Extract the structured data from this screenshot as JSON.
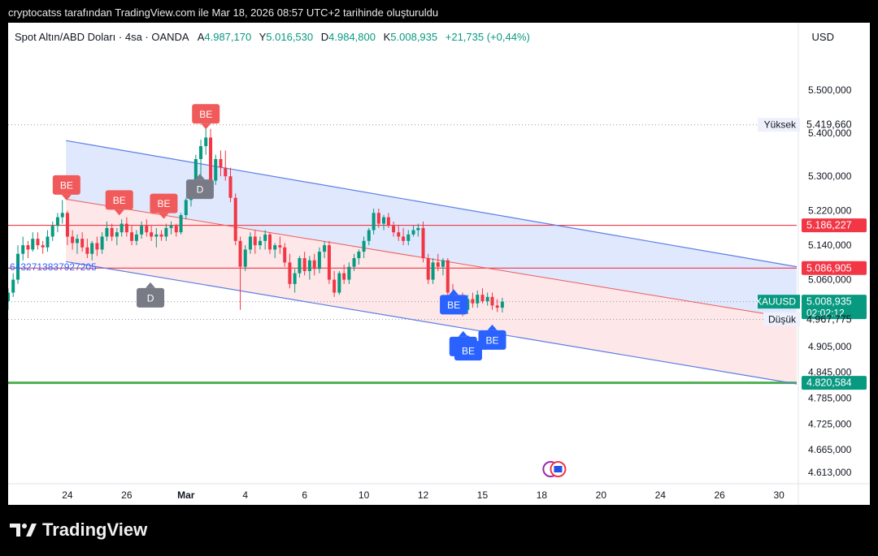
{
  "caption": "cryptocatss tarafından TradingView.com ile Mar 18, 2026 08:57 UTC+2 tarihinde oluşturuldu",
  "legend": {
    "symbol": "Spot Altın/ABD Doları · 4sa · OANDA",
    "open_label": "A",
    "open": "4.987,170",
    "high_label": "Y",
    "high": "5.016,530",
    "low_label": "D",
    "low": "4.984,800",
    "close_label": "K",
    "close": "5.008,935",
    "change": "+21,735 (+0,44%)"
  },
  "currency": "USD",
  "brand": "TradingView",
  "colors": {
    "up": "#089981",
    "down": "#f23645",
    "channel_blue": "#5b7ee5",
    "channel_fill_blue": "#dbe6fd",
    "channel_fill_red": "#fde4e6",
    "support_green": "#4caf50",
    "resistance_red": "#f23645",
    "be_label_red": "#f05a5a",
    "be_label_blue": "#2962ff",
    "d_label_gray": "#787b86"
  },
  "chart_data": {
    "type": "candlestick",
    "x_axis": {
      "ticks": [
        {
          "day": 24,
          "label": "24"
        },
        {
          "day": 26,
          "label": "26"
        },
        {
          "day": 28,
          "label": "Mar"
        },
        {
          "day": 30,
          "label": "4"
        },
        {
          "day": 32,
          "label": "6"
        },
        {
          "day": 34,
          "label": "10"
        },
        {
          "day": 36,
          "label": "12"
        },
        {
          "day": 38,
          "label": "15"
        },
        {
          "day": 40,
          "label": "18"
        },
        {
          "day": 42,
          "label": "20"
        },
        {
          "day": 44,
          "label": "24"
        },
        {
          "day": 46,
          "label": "26"
        },
        {
          "day": 48,
          "label": "30"
        }
      ],
      "range": [
        22.0,
        48.6
      ]
    },
    "y_axis": {
      "range": [
        4590,
        5600
      ],
      "ticks": [
        {
          "value": 5500,
          "label": "5.500,000"
        },
        {
          "value": 5400,
          "label": "5.400,000"
        },
        {
          "value": 5300,
          "label": "5.300,000"
        },
        {
          "value": 5220,
          "label": "5.220,000"
        },
        {
          "value": 5140,
          "label": "5.140,000"
        },
        {
          "value": 5060,
          "label": "5.060,000"
        },
        {
          "value": 4905,
          "label": "4.905,000"
        },
        {
          "value": 4845,
          "label": "4.845,000"
        },
        {
          "value": 4785,
          "label": "4.785,000"
        },
        {
          "value": 4725,
          "label": "4.725,000"
        },
        {
          "value": 4665,
          "label": "4.665,000"
        },
        {
          "value": 4613,
          "label": "4.613,000"
        }
      ]
    },
    "price_labels": [
      {
        "value": 5419.66,
        "text": "5.419,660",
        "tag": "Yüksek",
        "style": "plain"
      },
      {
        "value": 5186.227,
        "text": "5.186,227",
        "style": "red"
      },
      {
        "value": 5086.905,
        "text": "5.086,905",
        "style": "red"
      },
      {
        "value": 5008.935,
        "text": "5.008,935",
        "sub": "02:02:12",
        "tag": "XAUUSD",
        "style": "green"
      },
      {
        "value": 4967.775,
        "text": "4.967,775",
        "tag": "Düşük",
        "style": "plain"
      },
      {
        "value": 4820.584,
        "text": "4.820,584",
        "style": "green"
      }
    ],
    "horizontal_lines": [
      {
        "value": 5186.227,
        "color": "#f23645"
      },
      {
        "value": 5086.905,
        "color": "#f23645"
      },
      {
        "value": 4820.584,
        "color": "#4caf50",
        "thick": true
      }
    ],
    "dotted_lines": [
      5419.66,
      5008.935,
      4967.775
    ],
    "channel": {
      "upper": [
        [
          23.95,
          5383
        ],
        [
          48.6,
          5090
        ]
      ],
      "middle": [
        [
          23.95,
          5247
        ],
        [
          48.6,
          4969
        ]
      ],
      "lower": [
        [
          23.95,
          5102
        ],
        [
          48.6,
          4818
        ]
      ]
    },
    "series": [
      [
        22.0,
        5010,
        5040,
        4990,
        5030
      ],
      [
        22.17,
        5030,
        5075,
        5020,
        5060
      ],
      [
        22.33,
        5060,
        5140,
        5050,
        5120
      ],
      [
        22.5,
        5120,
        5160,
        5105,
        5140
      ],
      [
        22.67,
        5140,
        5150,
        5110,
        5130
      ],
      [
        22.83,
        5130,
        5170,
        5125,
        5155
      ],
      [
        23.0,
        5155,
        5170,
        5130,
        5140
      ],
      [
        23.17,
        5140,
        5150,
        5120,
        5135
      ],
      [
        23.33,
        5135,
        5175,
        5125,
        5160
      ],
      [
        23.5,
        5160,
        5195,
        5150,
        5185
      ],
      [
        23.67,
        5185,
        5215,
        5170,
        5205
      ],
      [
        23.83,
        5205,
        5245,
        5190,
        5215
      ],
      [
        24.0,
        5215,
        5220,
        5140,
        5160
      ],
      [
        24.17,
        5160,
        5175,
        5130,
        5145
      ],
      [
        24.33,
        5145,
        5165,
        5120,
        5155
      ],
      [
        24.5,
        5155,
        5170,
        5125,
        5135
      ],
      [
        24.67,
        5135,
        5155,
        5110,
        5120
      ],
      [
        24.83,
        5120,
        5150,
        5105,
        5145
      ],
      [
        25.0,
        5145,
        5160,
        5115,
        5130
      ],
      [
        25.17,
        5130,
        5170,
        5120,
        5160
      ],
      [
        25.33,
        5160,
        5195,
        5150,
        5180
      ],
      [
        25.5,
        5180,
        5190,
        5150,
        5160
      ],
      [
        25.67,
        5160,
        5180,
        5140,
        5170
      ],
      [
        25.83,
        5170,
        5200,
        5160,
        5190
      ],
      [
        26.0,
        5190,
        5205,
        5160,
        5170
      ],
      [
        26.17,
        5170,
        5185,
        5140,
        5150
      ],
      [
        26.33,
        5150,
        5175,
        5140,
        5165
      ],
      [
        26.5,
        5165,
        5195,
        5155,
        5185
      ],
      [
        26.67,
        5185,
        5200,
        5160,
        5170
      ],
      [
        26.83,
        5170,
        5185,
        5150,
        5160
      ],
      [
        27.0,
        5160,
        5180,
        5135,
        5165
      ],
      [
        27.17,
        5165,
        5175,
        5150,
        5160
      ],
      [
        27.33,
        5160,
        5190,
        5150,
        5180
      ],
      [
        27.5,
        5180,
        5195,
        5165,
        5185
      ],
      [
        27.67,
        5185,
        5190,
        5160,
        5170
      ],
      [
        27.83,
        5170,
        5215,
        5165,
        5210
      ],
      [
        28.0,
        5210,
        5250,
        5200,
        5245
      ],
      [
        28.17,
        5245,
        5290,
        5230,
        5280
      ],
      [
        28.33,
        5280,
        5350,
        5270,
        5340
      ],
      [
        28.5,
        5340,
        5385,
        5300,
        5370
      ],
      [
        28.67,
        5370,
        5420,
        5350,
        5390
      ],
      [
        28.83,
        5390,
        5410,
        5260,
        5290
      ],
      [
        29.0,
        5290,
        5350,
        5280,
        5340
      ],
      [
        29.17,
        5340,
        5360,
        5300,
        5320
      ],
      [
        29.33,
        5320,
        5360,
        5290,
        5300
      ],
      [
        29.5,
        5300,
        5320,
        5240,
        5250
      ],
      [
        29.67,
        5250,
        5260,
        5140,
        5150
      ],
      [
        29.83,
        5150,
        5160,
        4990,
        5090
      ],
      [
        30.0,
        5090,
        5140,
        5080,
        5130
      ],
      [
        30.17,
        5130,
        5170,
        5120,
        5160
      ],
      [
        30.33,
        5160,
        5175,
        5120,
        5140
      ],
      [
        30.5,
        5140,
        5160,
        5130,
        5150
      ],
      [
        30.67,
        5150,
        5175,
        5130,
        5165
      ],
      [
        30.83,
        5165,
        5170,
        5120,
        5130
      ],
      [
        31.0,
        5130,
        5145,
        5110,
        5140
      ],
      [
        31.17,
        5140,
        5160,
        5120,
        5135
      ],
      [
        31.33,
        5135,
        5145,
        5090,
        5100
      ],
      [
        31.5,
        5100,
        5120,
        5040,
        5050
      ],
      [
        31.67,
        5050,
        5085,
        5030,
        5075
      ],
      [
        31.83,
        5075,
        5115,
        5065,
        5110
      ],
      [
        32.0,
        5110,
        5125,
        5070,
        5080
      ],
      [
        32.17,
        5080,
        5115,
        5060,
        5105
      ],
      [
        32.33,
        5105,
        5120,
        5070,
        5085
      ],
      [
        32.5,
        5085,
        5135,
        5075,
        5125
      ],
      [
        32.67,
        5125,
        5150,
        5110,
        5140
      ],
      [
        32.83,
        5140,
        5150,
        5050,
        5060
      ],
      [
        33.0,
        5060,
        5080,
        5020,
        5030
      ],
      [
        33.17,
        5030,
        5080,
        5025,
        5075
      ],
      [
        33.33,
        5075,
        5095,
        5050,
        5060
      ],
      [
        33.5,
        5060,
        5100,
        5050,
        5090
      ],
      [
        33.67,
        5090,
        5120,
        5080,
        5110
      ],
      [
        33.83,
        5110,
        5130,
        5095,
        5125
      ],
      [
        34.0,
        5125,
        5160,
        5110,
        5150
      ],
      [
        34.17,
        5150,
        5180,
        5140,
        5175
      ],
      [
        34.33,
        5175,
        5225,
        5165,
        5215
      ],
      [
        34.5,
        5215,
        5225,
        5180,
        5190
      ],
      [
        34.67,
        5190,
        5210,
        5175,
        5205
      ],
      [
        34.83,
        5205,
        5215,
        5180,
        5185
      ],
      [
        35.0,
        5185,
        5195,
        5160,
        5170
      ],
      [
        35.17,
        5170,
        5185,
        5150,
        5160
      ],
      [
        35.33,
        5160,
        5180,
        5140,
        5150
      ],
      [
        35.5,
        5150,
        5175,
        5140,
        5165
      ],
      [
        35.67,
        5165,
        5185,
        5160,
        5175
      ],
      [
        35.83,
        5175,
        5190,
        5160,
        5180
      ],
      [
        36.0,
        5180,
        5195,
        5100,
        5110
      ],
      [
        36.17,
        5110,
        5120,
        5050,
        5060
      ],
      [
        36.33,
        5060,
        5110,
        5050,
        5100
      ],
      [
        36.5,
        5100,
        5120,
        5080,
        5090
      ],
      [
        36.67,
        5090,
        5110,
        5070,
        5105
      ],
      [
        36.83,
        5105,
        5110,
        5020,
        5030
      ],
      [
        37.0,
        5030,
        5050,
        4990,
        5000
      ],
      [
        37.17,
        5000,
        5020,
        4980,
        5010
      ],
      [
        37.33,
        5010,
        5030,
        4975,
        4990
      ],
      [
        37.5,
        4990,
        5025,
        4980,
        5015
      ],
      [
        37.67,
        5015,
        5030,
        4995,
        5005
      ],
      [
        37.83,
        5005,
        5035,
        4995,
        5025
      ],
      [
        38.0,
        5025,
        5040,
        5005,
        5010
      ],
      [
        38.17,
        5010,
        5030,
        5000,
        5020
      ],
      [
        38.33,
        5020,
        5030,
        4990,
        5000
      ],
      [
        38.5,
        5000,
        5015,
        4985,
        4995
      ],
      [
        38.67,
        4995,
        5018,
        4984,
        5009
      ]
    ],
    "annotations": [
      {
        "text": "BE",
        "day": 23.97,
        "value": 5280,
        "color": "red",
        "dir": "down"
      },
      {
        "text": "BE",
        "day": 25.75,
        "value": 5245,
        "color": "red",
        "dir": "down"
      },
      {
        "text": "BE",
        "day": 27.25,
        "value": 5237,
        "color": "red",
        "dir": "down"
      },
      {
        "text": "BE",
        "day": 28.67,
        "value": 5445,
        "color": "red",
        "dir": "down"
      },
      {
        "text": "D",
        "day": 28.47,
        "value": 5270,
        "color": "gray",
        "dir": "up"
      },
      {
        "text": "D",
        "day": 26.8,
        "value": 5018,
        "color": "gray",
        "dir": "up"
      },
      {
        "text": "BE",
        "day": 37.03,
        "value": 5002,
        "color": "blue",
        "dir": "up"
      },
      {
        "text": "BE",
        "day": 37.35,
        "value": 4905,
        "color": "blue",
        "dir": "up"
      },
      {
        "text": "BE",
        "day": 37.52,
        "value": 4895,
        "color": "blue",
        "dir": "up"
      },
      {
        "text": "BE",
        "day": 38.33,
        "value": 4920,
        "color": "blue",
        "dir": "up"
      }
    ],
    "side_text": "6432713837927205"
  }
}
